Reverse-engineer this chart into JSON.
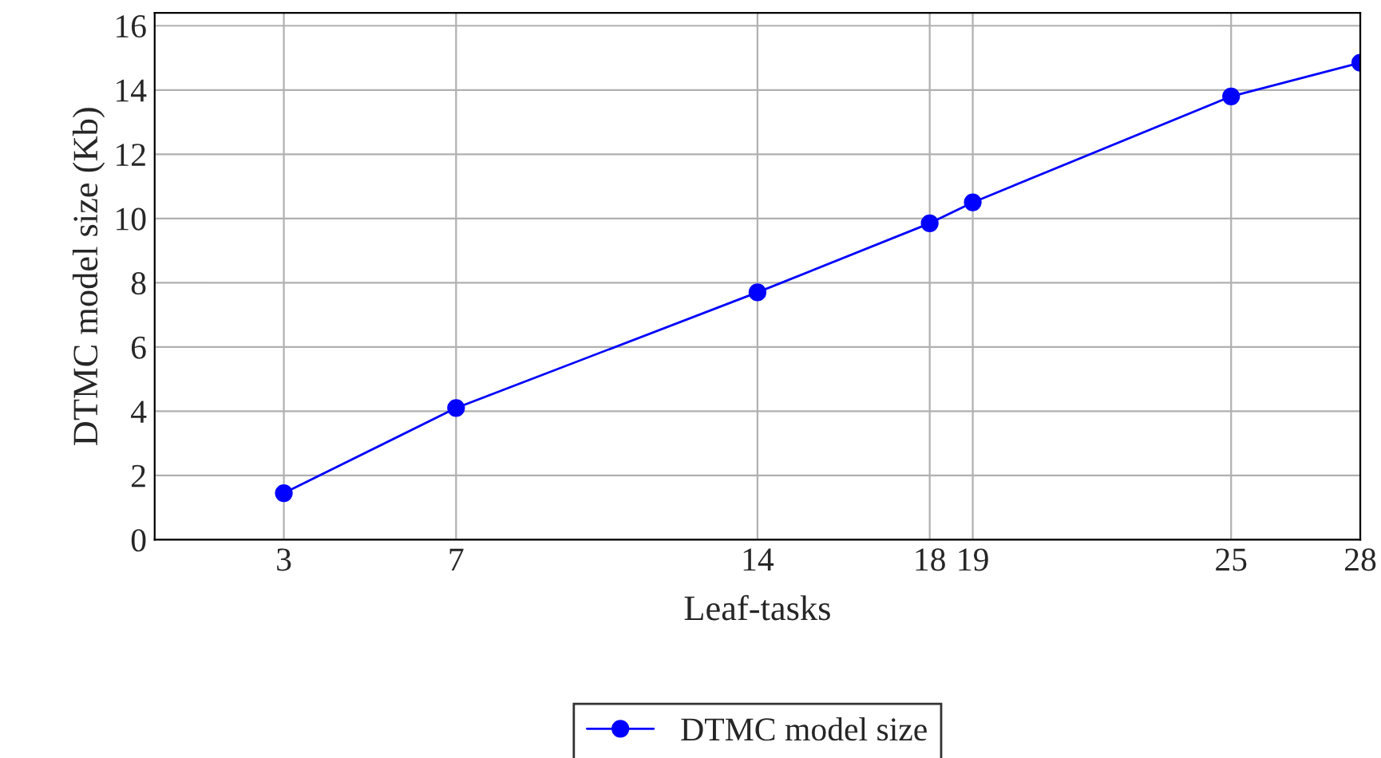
{
  "chart_data": {
    "type": "line",
    "xlabel": "Leaf-tasks",
    "ylabel": "DTMC model size (Kb)",
    "x": [
      3,
      7,
      14,
      18,
      19,
      25,
      28
    ],
    "series": [
      {
        "name": "DTMC model size",
        "color": "#0000ff",
        "values": [
          1.45,
          4.1,
          7.7,
          9.85,
          10.5,
          13.8,
          14.85
        ]
      }
    ],
    "xlim": [
      0,
      28
    ],
    "xticks": [
      3,
      7,
      14,
      18,
      19,
      25,
      28
    ],
    "ylim": [
      0,
      16.4
    ],
    "yticks": [
      0,
      2,
      4,
      6,
      8,
      10,
      12,
      14,
      16
    ],
    "grid": true,
    "legend": "bottom",
    "marker": "circle",
    "line_style": "solid"
  }
}
